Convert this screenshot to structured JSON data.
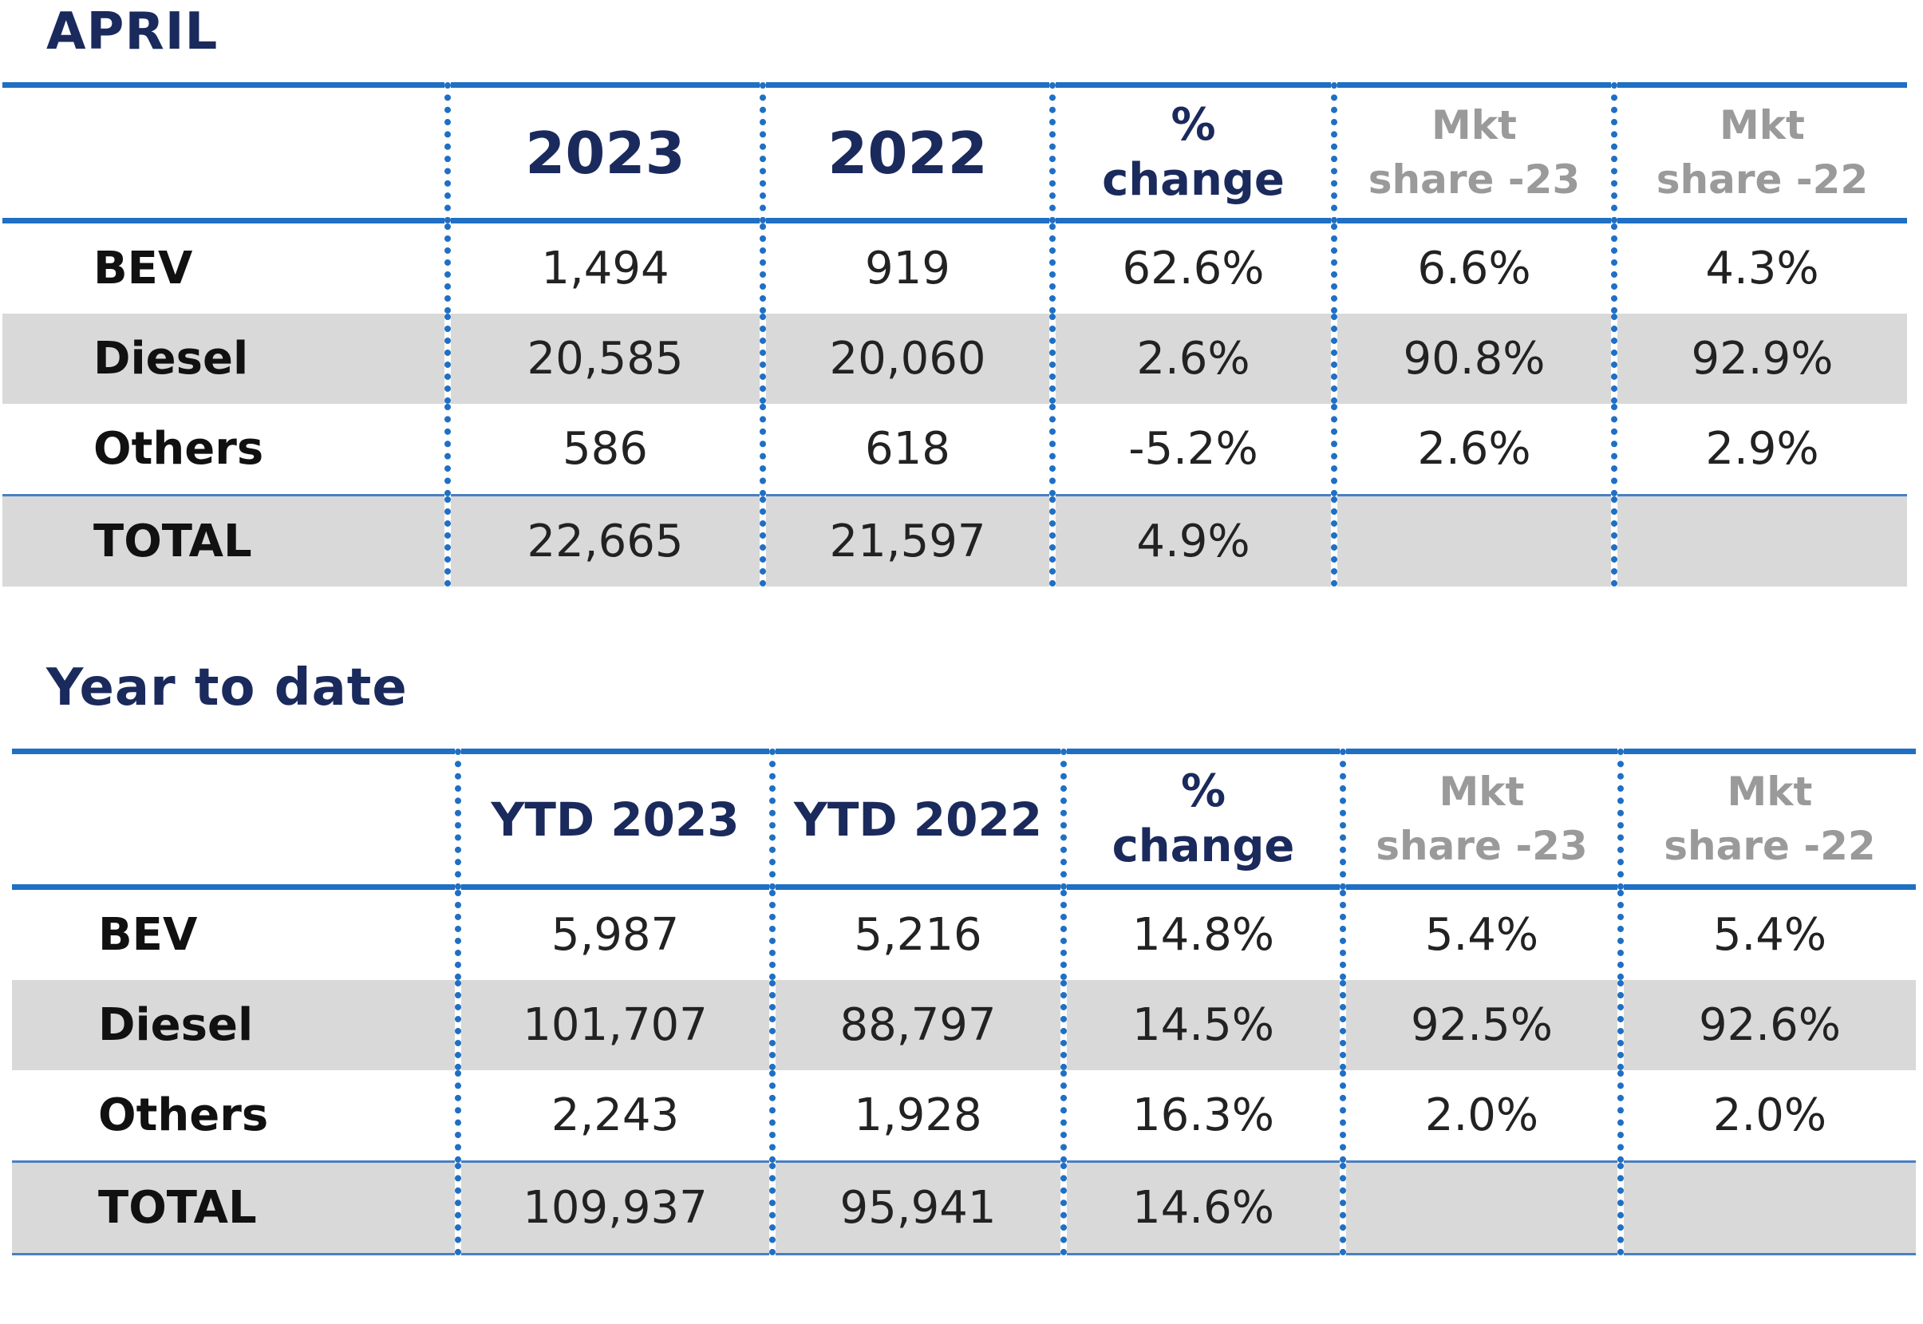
{
  "chart_data": [
    {
      "type": "table",
      "title": "APRIL",
      "columns": [
        "",
        "2023",
        "2022",
        "% change",
        "Mkt share -23",
        "Mkt share -22"
      ],
      "header_lines": {
        "pct": [
          "%",
          "change"
        ],
        "mkt23": [
          "Mkt",
          "share -23"
        ],
        "mkt22": [
          "Mkt",
          "share -22"
        ]
      },
      "rows": [
        {
          "label": "BEV",
          "v2023": "1,494",
          "v2022": "919",
          "change": "62.6%",
          "share23": "6.6%",
          "share22": "4.3%"
        },
        {
          "label": "Diesel",
          "v2023": "20,585",
          "v2022": "20,060",
          "change": "2.6%",
          "share23": "90.8%",
          "share22": "92.9%"
        },
        {
          "label": "Others",
          "v2023": "586",
          "v2022": "618",
          "change": "-5.2%",
          "share23": "2.6%",
          "share22": "2.9%"
        },
        {
          "label": "TOTAL",
          "v2023": "22,665",
          "v2022": "21,597",
          "change": "4.9%",
          "share23": "",
          "share22": ""
        }
      ],
      "values": {
        "BEV": [
          1494,
          919,
          62.6,
          6.6,
          4.3
        ],
        "Diesel": [
          20585,
          20060,
          2.6,
          90.8,
          92.9
        ],
        "Others": [
          586,
          618,
          -5.2,
          2.6,
          2.9
        ],
        "TOTAL": [
          22665,
          21597,
          4.9
        ]
      }
    },
    {
      "type": "table",
      "title": "Year to date",
      "columns": [
        "",
        "YTD 2023",
        "YTD 2022",
        "% change",
        "Mkt share -23",
        "Mkt share -22"
      ],
      "header_lines": {
        "pct": [
          "%",
          "change"
        ],
        "mkt23": [
          "Mkt",
          "share -23"
        ],
        "mkt22": [
          "Mkt",
          "share -22"
        ]
      },
      "rows": [
        {
          "label": "BEV",
          "v2023": "5,987",
          "v2022": "5,216",
          "change": "14.8%",
          "share23": "5.4%",
          "share22": "5.4%"
        },
        {
          "label": "Diesel",
          "v2023": "101,707",
          "v2022": "88,797",
          "change": "14.5%",
          "share23": "92.5%",
          "share22": "92.6%"
        },
        {
          "label": "Others",
          "v2023": "2,243",
          "v2022": "1,928",
          "change": "16.3%",
          "share23": "2.0%",
          "share22": "2.0%"
        },
        {
          "label": "TOTAL",
          "v2023": "109,937",
          "v2022": "95,941",
          "change": "14.6%",
          "share23": "",
          "share22": ""
        }
      ],
      "values": {
        "BEV": [
          5987,
          5216,
          14.8,
          5.4,
          5.4
        ],
        "Diesel": [
          101707,
          88797,
          14.5,
          92.5,
          92.6
        ],
        "Others": [
          2243,
          1928,
          16.3,
          2.0,
          2.0
        ],
        "TOTAL": [
          109937,
          95941,
          14.6
        ]
      }
    }
  ],
  "colors": {
    "title": "#1b2a5c",
    "rule": "#1f6fc4",
    "muted_header": "#9a9a9a",
    "row_shade": "#d9d9d9"
  }
}
